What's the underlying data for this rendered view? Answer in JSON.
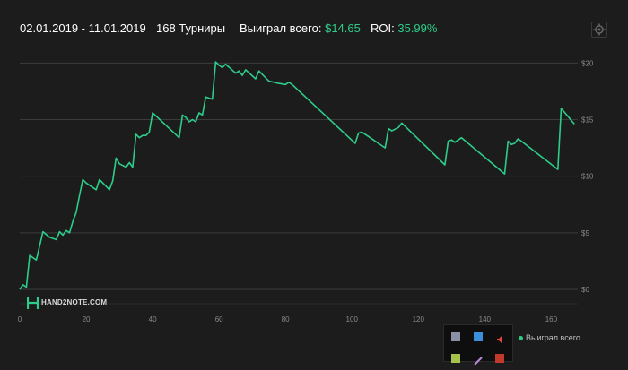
{
  "header": {
    "date_range": "02.01.2019 - 11.01.2019",
    "tournaments": "168 Турниры",
    "won_label": "Выиграл всего:",
    "won_value": "$14.65",
    "roi_label": "ROI:",
    "roi_value": "35.99%"
  },
  "logo": {
    "text": "HAND2NOTE.COM"
  },
  "colors": {
    "background": "#1c1c1c",
    "line": "#2ecc8a",
    "grid": "#3c3c3c",
    "text_muted": "#8a8a8a",
    "accent_green": "#2ecc8a"
  },
  "chart_data": {
    "type": "line",
    "xlim": [
      0,
      168
    ],
    "ylim": [
      0,
      20.5
    ],
    "x_ticks": [
      0,
      20,
      40,
      60,
      80,
      100,
      120,
      140,
      160
    ],
    "y_ticks": [
      0,
      5,
      10,
      15,
      20
    ],
    "y_tick_labels": [
      "$0",
      "$5",
      "$10",
      "$15",
      "$20"
    ],
    "grid": true,
    "legend_position": "bottom-right",
    "series": [
      {
        "name": "Выиграл всего",
        "x": [
          0,
          1,
          2,
          3,
          5,
          7,
          9,
          11,
          12,
          13,
          14,
          15,
          16,
          17,
          18,
          19,
          20,
          23,
          24,
          27,
          28,
          29,
          30,
          32,
          33,
          34,
          35,
          36,
          37,
          38,
          39,
          40,
          48,
          49,
          50,
          51,
          52,
          53,
          54,
          55,
          56,
          58,
          59,
          60,
          61,
          62,
          65,
          66,
          67,
          68,
          71,
          72,
          75,
          78,
          80,
          81,
          82,
          101,
          102,
          103,
          105,
          110,
          111,
          112,
          114,
          115,
          128,
          129,
          130,
          131,
          133,
          146,
          147,
          148,
          149,
          150,
          151,
          162,
          163,
          167
        ],
        "y": [
          0,
          0.4,
          0.2,
          3,
          2.6,
          5.1,
          4.6,
          4.4,
          5.1,
          4.8,
          5.2,
          5.0,
          6.0,
          6.8,
          8.3,
          9.7,
          9.4,
          8.8,
          9.7,
          8.8,
          9.6,
          11.6,
          11.1,
          10.8,
          11.2,
          10.8,
          13.7,
          13.4,
          13.6,
          13.6,
          13.9,
          15.6,
          13.4,
          15.4,
          15.2,
          14.8,
          15.0,
          14.8,
          15.6,
          15.4,
          17.0,
          16.8,
          20.1,
          19.8,
          19.6,
          19.9,
          19.1,
          19.3,
          18.9,
          19.4,
          18.6,
          19.3,
          18.4,
          18.2,
          18.1,
          18.3,
          18.1,
          12.9,
          13.8,
          13.9,
          13.5,
          12.5,
          14.2,
          14.0,
          14.3,
          14.7,
          11.0,
          13.1,
          13.2,
          13.0,
          13.4,
          10.2,
          13.1,
          12.8,
          12.9,
          13.3,
          13.1,
          10.6,
          16.0,
          14.6
        ]
      }
    ]
  }
}
